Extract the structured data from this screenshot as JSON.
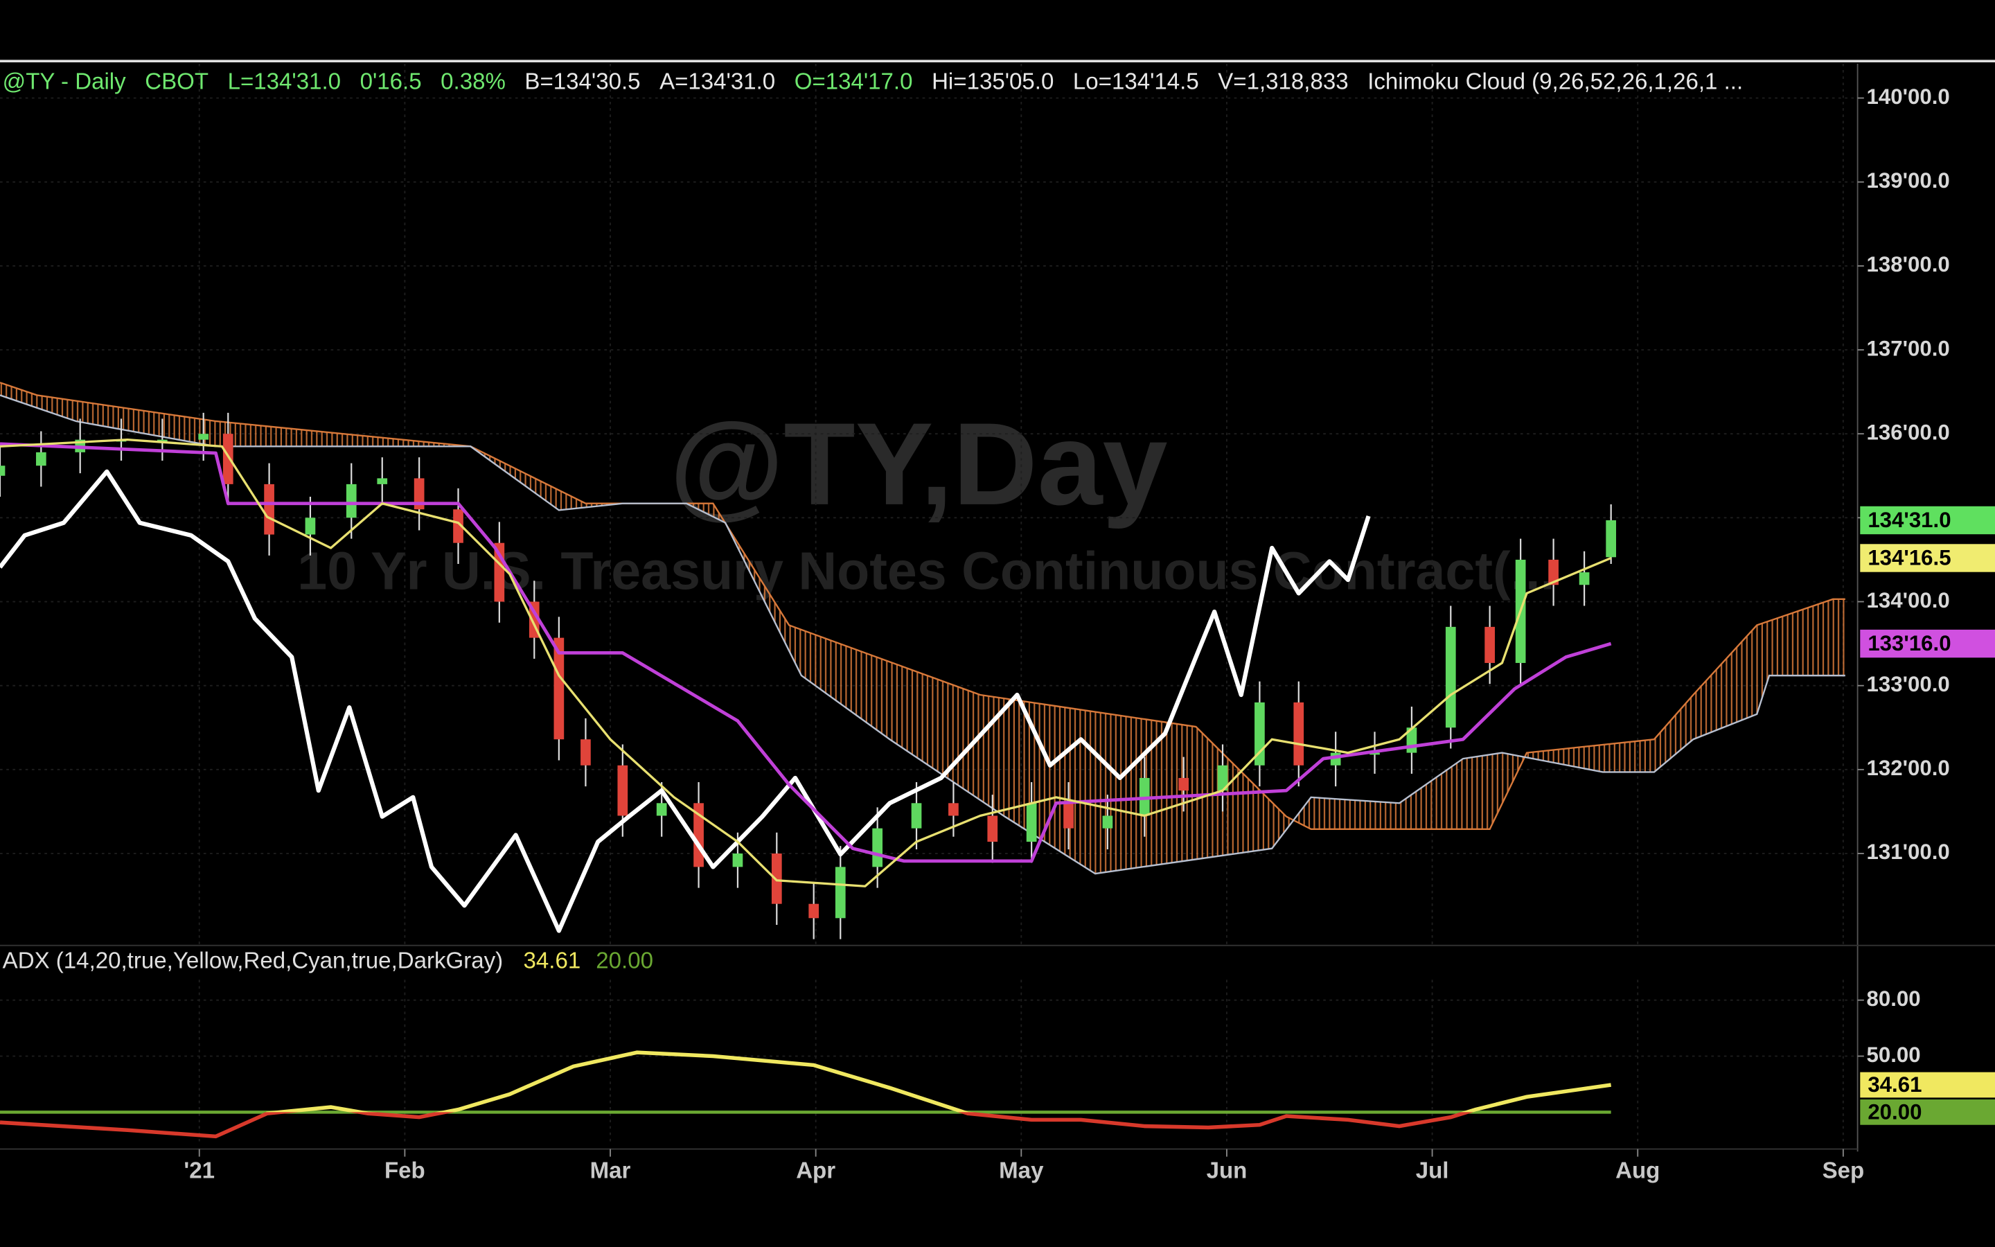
{
  "header": [
    {
      "text": "@TY - Daily",
      "color": "#6fe86f"
    },
    {
      "text": "CBOT",
      "color": "#6fe86f"
    },
    {
      "text": "L=134'31.0",
      "color": "#6fe86f"
    },
    {
      "text": "0'16.5",
      "color": "#6fe86f"
    },
    {
      "text": "0.38%",
      "color": "#6fe86f"
    },
    {
      "text": "B=134'30.5",
      "color": "#e8e8e8"
    },
    {
      "text": "A=134'31.0",
      "color": "#e8e8e8"
    },
    {
      "text": "O=134'17.0",
      "color": "#6fe86f"
    },
    {
      "text": "Hi=135'05.0",
      "color": "#e8e8e8"
    },
    {
      "text": "Lo=134'14.5",
      "color": "#e8e8e8"
    },
    {
      "text": "V=1,318,833",
      "color": "#e8e8e8"
    },
    {
      "text": "Ichimoku Cloud (9,26,52,26,1,26,1 ...",
      "color": "#e8e8e8"
    }
  ],
  "watermark": {
    "symbol": "@TY,Day",
    "description": "10 Yr U.S. Treasury Notes Continuous Contract(..."
  },
  "chart_data": [
    {
      "type": "candlestick",
      "xlim": [
        -0.97,
        8.07
      ],
      "ylim": [
        129.92,
        140.41
      ],
      "yticks": [
        {
          "value": 131,
          "label": "131'00.0"
        },
        {
          "value": 132,
          "label": "132'00.0"
        },
        {
          "value": 133,
          "label": "133'00.0"
        },
        {
          "value": 134,
          "label": "134'00.0"
        },
        {
          "value": 135,
          "label": "135'00.0"
        },
        {
          "value": 136,
          "label": "136'00.0"
        },
        {
          "value": 137,
          "label": "137'00.0"
        },
        {
          "value": 138,
          "label": "138'00.0"
        },
        {
          "value": 139,
          "label": "139'00.0"
        },
        {
          "value": 140,
          "label": "140'00.0"
        }
      ],
      "up_color": "#5fd85f",
      "down_color": "#e0443a",
      "x": [
        -0.97,
        -0.77,
        -0.58,
        -0.38,
        -0.18,
        0.02,
        0.14,
        0.34,
        0.54,
        0.74,
        0.89,
        1.07,
        1.26,
        1.46,
        1.63,
        1.75,
        1.88,
        2.06,
        2.25,
        2.43,
        2.62,
        2.81,
        2.99,
        3.12,
        3.3,
        3.49,
        3.67,
        3.86,
        4.05,
        4.23,
        4.42,
        4.6,
        4.79,
        4.98,
        5.16,
        5.35,
        5.53,
        5.72,
        5.9,
        6.09,
        6.28,
        6.43,
        6.59,
        6.74,
        6.87
      ],
      "open": [
        135.5,
        135.62,
        135.78,
        135.93,
        135.93,
        135.93,
        136.0,
        135.4,
        134.8,
        135.0,
        135.4,
        135.47,
        135.1,
        134.7,
        134.0,
        133.57,
        132.36,
        132.05,
        131.45,
        131.6,
        130.84,
        131.0,
        130.4,
        130.23,
        130.84,
        131.3,
        131.6,
        131.45,
        131.14,
        131.6,
        131.3,
        131.45,
        131.9,
        131.75,
        132.05,
        132.8,
        132.05,
        132.2,
        132.2,
        132.5,
        133.7,
        133.27,
        134.5,
        134.2,
        134.53
      ],
      "high": [
        135.87,
        136.03,
        136.18,
        136.18,
        136.18,
        136.25,
        136.25,
        135.65,
        135.25,
        135.65,
        135.72,
        135.72,
        135.35,
        134.95,
        134.25,
        133.82,
        132.61,
        132.3,
        131.85,
        131.85,
        131.25,
        131.25,
        130.65,
        131.09,
        131.55,
        131.85,
        131.85,
        131.7,
        131.85,
        131.85,
        131.7,
        132.15,
        132.15,
        132.3,
        133.05,
        133.05,
        132.45,
        132.45,
        132.75,
        133.95,
        133.95,
        134.75,
        134.75,
        134.6,
        135.16
      ],
      "low": [
        135.25,
        135.37,
        135.53,
        135.68,
        135.68,
        135.68,
        135.15,
        134.55,
        134.55,
        134.75,
        135.15,
        134.85,
        134.45,
        133.75,
        133.32,
        132.11,
        131.8,
        131.2,
        131.2,
        130.59,
        130.59,
        130.15,
        129.98,
        129.98,
        130.59,
        131.05,
        131.2,
        130.89,
        130.89,
        131.05,
        131.05,
        131.2,
        131.5,
        131.5,
        131.8,
        131.8,
        131.8,
        131.95,
        131.95,
        132.25,
        133.02,
        133.02,
        133.95,
        133.95,
        134.45
      ],
      "close": [
        135.62,
        135.78,
        135.93,
        135.93,
        135.93,
        136.0,
        135.4,
        134.8,
        135.0,
        135.4,
        135.47,
        135.1,
        134.7,
        134.0,
        133.57,
        132.36,
        132.05,
        131.45,
        131.6,
        130.84,
        131.0,
        130.4,
        130.23,
        130.84,
        131.3,
        131.6,
        131.45,
        131.14,
        131.6,
        131.3,
        131.45,
        131.9,
        131.75,
        132.05,
        132.8,
        132.05,
        132.2,
        132.2,
        132.5,
        133.7,
        133.27,
        134.5,
        134.2,
        134.35,
        134.97
      ],
      "cloud": [
        {
          "color": "#d8793a",
          "x": [
            -0.97,
            -0.79,
            0.08,
            1.32,
            1.88,
            2.5,
            2.87,
            3.8,
            4.85,
            5.29,
            5.41,
            6.28,
            6.46,
            7.08,
            7.27,
            7.58,
            7.95,
            8.01
          ],
          "values": [
            136.61,
            136.46,
            136.15,
            135.85,
            135.17,
            135.17,
            133.72,
            132.89,
            132.51,
            131.44,
            131.29,
            131.29,
            132.2,
            132.36,
            132.89,
            133.72,
            134.03,
            134.03
          ]
        },
        {
          "color": "#b8c0d0",
          "x": [
            -0.97,
            -0.6,
            0.08,
            1.32,
            1.75,
            2.06,
            2.37,
            2.56,
            2.93,
            3.36,
            3.92,
            4.36,
            5.22,
            5.41,
            5.84,
            6.15,
            6.34,
            6.83,
            7.08,
            7.27,
            7.58,
            7.64,
            8.01
          ],
          "values": [
            136.46,
            136.15,
            135.85,
            135.85,
            135.09,
            135.17,
            135.17,
            134.94,
            133.12,
            132.36,
            131.44,
            130.76,
            131.06,
            131.67,
            131.6,
            132.13,
            132.2,
            131.97,
            131.97,
            132.36,
            132.66,
            133.12,
            133.12
          ]
        }
      ],
      "series": [
        {
          "color": "#ffffff",
          "width": 3.4,
          "x": [
            -0.97,
            -0.85,
            -0.66,
            -0.45,
            -0.29,
            -0.04,
            0.14,
            0.27,
            0.45,
            0.58,
            0.73,
            0.89,
            1.04,
            1.13,
            1.29,
            1.54,
            1.75,
            1.94,
            2.09,
            2.25,
            2.5,
            2.74,
            2.9,
            3.12,
            3.36,
            3.61,
            3.98,
            4.14,
            4.29,
            4.48,
            4.7,
            4.85,
            4.94,
            5.07,
            5.22,
            5.35,
            5.5,
            5.59,
            5.69
          ],
          "values": [
            134.41,
            134.79,
            134.94,
            135.55,
            134.94,
            134.79,
            134.48,
            133.8,
            133.34,
            131.75,
            132.74,
            131.44,
            131.67,
            130.84,
            130.38,
            131.22,
            130.08,
            131.14,
            131.44,
            131.75,
            130.84,
            131.44,
            131.9,
            130.99,
            131.6,
            131.9,
            132.89,
            132.05,
            132.36,
            131.9,
            132.43,
            133.34,
            133.88,
            132.89,
            134.64,
            134.1,
            134.48,
            134.26,
            135.02
          ]
        },
        {
          "color": "#c040d8",
          "width": 2.6,
          "x": [
            -0.97,
            0.08,
            0.14,
            1.26,
            1.44,
            1.75,
            2.06,
            2.62,
            2.87,
            3.18,
            3.43,
            4.05,
            4.17,
            5.29,
            5.47,
            6.15,
            6.4,
            6.65,
            6.87
          ],
          "values": [
            135.88,
            135.77,
            135.17,
            135.17,
            134.64,
            133.39,
            133.39,
            132.58,
            131.82,
            131.06,
            130.91,
            130.91,
            131.6,
            131.75,
            132.13,
            132.36,
            132.96,
            133.34,
            133.5
          ]
        },
        {
          "color": "#e8e070",
          "width": 1.8,
          "x": [
            -0.97,
            -0.35,
            0.11,
            0.33,
            0.64,
            0.89,
            1.26,
            1.51,
            1.75,
            2.0,
            2.31,
            2.62,
            2.81,
            3.24,
            3.49,
            3.8,
            4.17,
            4.6,
            4.98,
            5.22,
            5.59,
            5.84,
            6.09,
            6.34,
            6.46,
            6.87
          ],
          "values": [
            135.85,
            135.93,
            135.85,
            135.01,
            134.64,
            135.17,
            134.94,
            134.33,
            133.12,
            132.36,
            131.67,
            131.14,
            130.68,
            130.61,
            131.14,
            131.45,
            131.67,
            131.45,
            131.75,
            132.36,
            132.2,
            132.36,
            132.89,
            133.27,
            134.1,
            134.52
          ]
        }
      ],
      "price_labels": [
        {
          "value": 134.97,
          "label": "134'31.0",
          "color": "#5fe05f"
        },
        {
          "value": 134.52,
          "label": "134'16.5",
          "color": "#f0ec70"
        },
        {
          "value": 133.5,
          "label": "133'16.0",
          "color": "#d050e0"
        }
      ]
    },
    {
      "type": "line",
      "title": "ADX (14,20,true,Yellow,Red,Cyan,true,DarkGray)",
      "xlim": [
        -0.97,
        8.07
      ],
      "xticks": [
        {
          "value": 0,
          "label": "'21"
        },
        {
          "value": 1,
          "label": "Feb"
        },
        {
          "value": 2,
          "label": "Mar"
        },
        {
          "value": 3,
          "label": "Apr"
        },
        {
          "value": 4,
          "label": "May"
        },
        {
          "value": 5,
          "label": "Jun"
        },
        {
          "value": 6,
          "label": "Jul"
        },
        {
          "value": 7,
          "label": "Aug"
        },
        {
          "value": 8,
          "label": "Sep"
        }
      ],
      "ylim": [
        2.3,
        90.9
      ],
      "yticks": [
        {
          "value": 50,
          "label": "50.00"
        },
        {
          "value": 80,
          "label": "80.00"
        }
      ],
      "threshold": {
        "value": 20,
        "label": "20.00",
        "color": "#6aa832"
      },
      "series": [
        {
          "color": "#f0e860",
          "below_color": "#d8392b",
          "x": [
            -0.97,
            -0.35,
            0.08,
            0.33,
            0.64,
            0.82,
            1.07,
            1.26,
            1.51,
            1.82,
            2.13,
            2.5,
            2.99,
            3.36,
            3.74,
            4.05,
            4.29,
            4.6,
            4.91,
            5.16,
            5.29,
            5.59,
            5.84,
            6.09,
            6.21,
            6.46,
            6.87
          ],
          "values": [
            14.5,
            10.4,
            7,
            19.3,
            22.7,
            19.3,
            17.3,
            21.4,
            29.6,
            44.5,
            52,
            50,
            45.2,
            33,
            19.3,
            15.9,
            15.9,
            12.5,
            11.8,
            13.2,
            17.9,
            15.9,
            12.5,
            17.3,
            21.4,
            28.2,
            34.61
          ],
          "value_labels": [
            null,
            null,
            null,
            null,
            null,
            null,
            null,
            null,
            null,
            null,
            null,
            null,
            null,
            null,
            null,
            null,
            null,
            null,
            null,
            null,
            null,
            null,
            null,
            null,
            null,
            null,
            "34.61"
          ]
        }
      ]
    }
  ]
}
